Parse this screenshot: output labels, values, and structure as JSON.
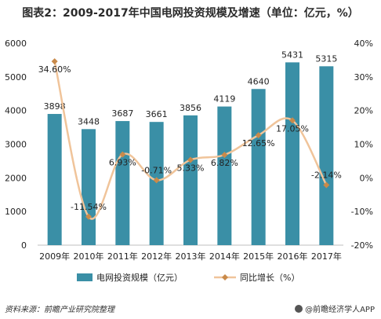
{
  "title": "图表2：2009-2017年中国电网投资规模及增速（单位：亿元，%）",
  "source": "资料来源：前瞻产业研究院整理",
  "brand": "@前瞻经济学人APP",
  "chart_data": {
    "type": "bar",
    "categories": [
      "2009年",
      "2010年",
      "2011年",
      "2012年",
      "2013年",
      "2014年",
      "2015年",
      "2016年",
      "2017年"
    ],
    "series": [
      {
        "name": "电网投资规模（亿元）",
        "type": "bar",
        "axis": "left",
        "values": [
          3898,
          3448,
          3687,
          3661,
          3856,
          4119,
          4640,
          5431,
          5315
        ],
        "labels": [
          "3898",
          "3448",
          "3687",
          "3661",
          "3856",
          "4119",
          "4640",
          "5431",
          "5315"
        ],
        "color": "#3a8fa6"
      },
      {
        "name": "同比增长（%）",
        "type": "line",
        "axis": "right",
        "values": [
          34.6,
          -11.54,
          6.93,
          -0.71,
          5.33,
          6.82,
          12.65,
          17.05,
          -2.14
        ],
        "labels": [
          "34.60%",
          "-11.54%",
          "6.93%",
          "-0.71%",
          "5.33%",
          "6.82%",
          "12.65%",
          "17.05%",
          "-2.14%"
        ],
        "color": "#f0c49a"
      }
    ],
    "y_left": {
      "range": [
        0,
        6000
      ],
      "ticks": [
        "0",
        "1000",
        "2000",
        "3000",
        "4000",
        "5000",
        "6000"
      ]
    },
    "y_right": {
      "range": [
        -20,
        40
      ],
      "ticks": [
        "-20%",
        "-10%",
        "0%",
        "10%",
        "20%",
        "30%",
        "40%"
      ]
    },
    "grid": false,
    "legend_position": "bottom"
  }
}
